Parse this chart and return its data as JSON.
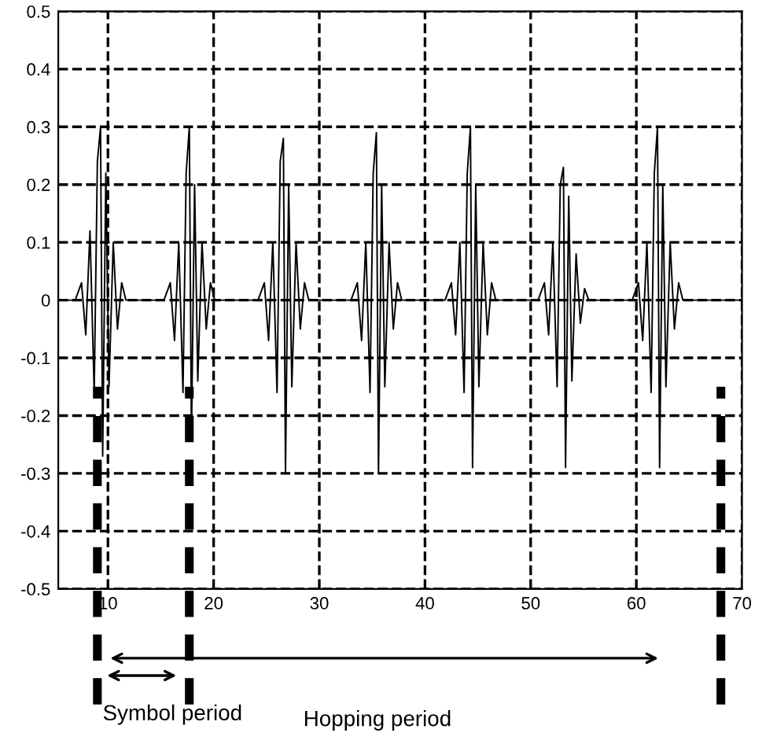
{
  "chart_data": {
    "type": "line",
    "x": [
      5.3,
      6.9,
      7.5,
      7.9,
      8.3,
      8.7,
      9.0,
      9.3,
      9.5,
      9.8,
      10.1,
      10.5,
      10.9,
      11.3,
      11.7,
      15.3,
      15.9,
      16.3,
      16.7,
      17.1,
      17.4,
      17.7,
      17.9,
      18.2,
      18.5,
      18.9,
      19.3,
      19.7,
      20.1,
      24.2,
      24.8,
      25.2,
      25.6,
      26.0,
      26.3,
      26.6,
      26.8,
      27.1,
      27.4,
      27.8,
      28.2,
      28.6,
      29.0,
      33.0,
      33.6,
      34.0,
      34.4,
      34.8,
      35.1,
      35.4,
      35.6,
      35.9,
      36.2,
      36.6,
      37.0,
      37.4,
      37.8,
      41.9,
      42.5,
      42.9,
      43.3,
      43.7,
      44.0,
      44.3,
      44.5,
      44.8,
      45.1,
      45.5,
      45.9,
      46.3,
      46.7,
      50.7,
      51.3,
      51.7,
      52.1,
      52.5,
      52.8,
      53.1,
      53.3,
      53.6,
      53.9,
      54.3,
      54.7,
      55.1,
      55.5,
      59.6,
      60.2,
      60.6,
      61.0,
      61.4,
      61.7,
      62.0,
      62.2,
      62.5,
      62.8,
      63.2,
      63.6,
      64.0,
      64.4,
      70
    ],
    "series": [
      {
        "color": "#000000",
        "values": [
          0,
          0,
          0.03,
          -0.06,
          0.12,
          -0.16,
          0.24,
          0.3,
          -0.27,
          0.22,
          -0.15,
          0.1,
          -0.05,
          0.03,
          0,
          0,
          0.03,
          -0.07,
          0.1,
          -0.16,
          0.22,
          0.3,
          -0.24,
          0.2,
          -0.14,
          0.1,
          -0.05,
          0.03,
          0,
          0,
          0.03,
          -0.07,
          0.1,
          -0.16,
          0.24,
          0.28,
          -0.3,
          0.2,
          -0.15,
          0.1,
          -0.05,
          0.03,
          0,
          0,
          0.03,
          -0.07,
          0.1,
          -0.16,
          0.22,
          0.29,
          -0.3,
          0.2,
          -0.15,
          0.1,
          -0.05,
          0.03,
          0,
          0,
          0.03,
          -0.06,
          0.1,
          -0.16,
          0.22,
          0.3,
          -0.29,
          0.2,
          -0.15,
          0.1,
          -0.06,
          0.03,
          0,
          0,
          0.03,
          -0.06,
          0.1,
          -0.15,
          0.2,
          0.23,
          -0.29,
          0.18,
          -0.14,
          0.08,
          -0.04,
          0.02,
          0,
          0,
          0.03,
          -0.07,
          0.1,
          -0.16,
          0.22,
          0.3,
          -0.29,
          0.2,
          -0.15,
          0.1,
          -0.05,
          0.03,
          0,
          0
        ]
      }
    ],
    "xlim": [
      5.3,
      70
    ],
    "ylim": [
      -0.5,
      0.5
    ],
    "xticks": [
      10,
      20,
      30,
      40,
      50,
      60,
      70
    ],
    "yticks": [
      -0.5,
      -0.4,
      -0.3,
      -0.2,
      -0.1,
      0,
      0.1,
      0.2,
      0.3,
      0.4,
      0.5
    ],
    "grid": true,
    "line_style": "solid",
    "marker": "none",
    "ref_lines": [
      {
        "axis": "x",
        "value": 9.0,
        "color": "#000000",
        "line_style": "dashed"
      },
      {
        "axis": "x",
        "value": 17.7,
        "color": "#000000",
        "line_style": "dashed"
      },
      {
        "axis": "x",
        "value": 68,
        "color": "#000000",
        "line_style": "dashed"
      }
    ],
    "annotations": [
      "Symbol period",
      "Hopping period"
    ]
  }
}
